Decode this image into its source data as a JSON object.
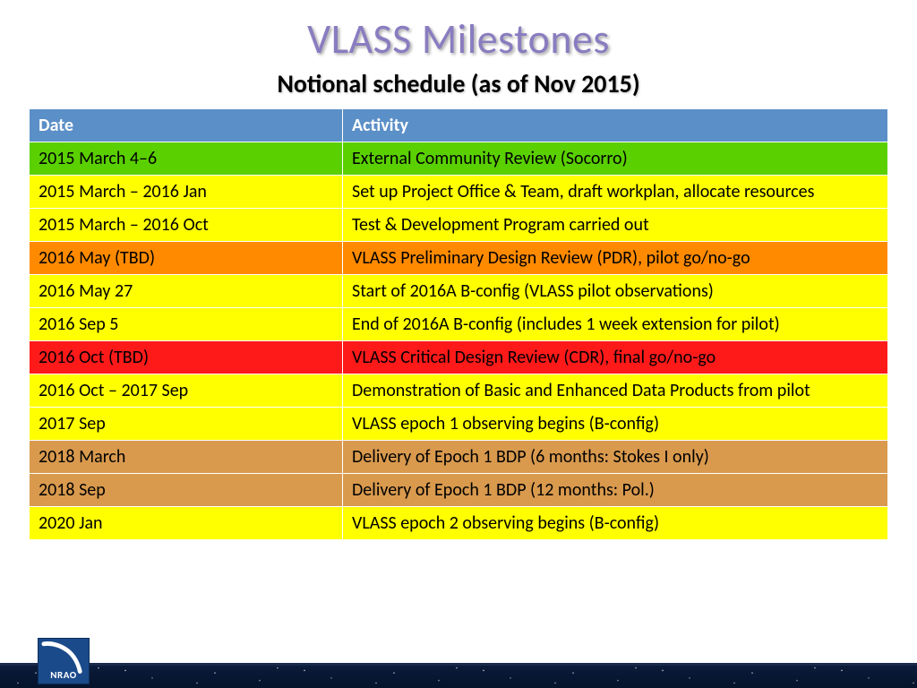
{
  "title": "VLASS Milestones",
  "subtitle": "Notional schedule (as of Nov 2015)",
  "colors": {
    "title": "#8a7cc0",
    "header_bg": "#5b8fc7",
    "green": "#5ad000",
    "yellow": "#ffff00",
    "orange": "#ff8a00",
    "red": "#ff1a1a",
    "tan": "#d99a4e",
    "footer": "#0b1b3a",
    "logo_bg": "#1a4a8a"
  },
  "table": {
    "headers": {
      "date": "Date",
      "activity": "Activity"
    },
    "rows": [
      {
        "date": "2015 March 4–6",
        "activity": "External Community Review (Socorro)",
        "bg": "#5ad000"
      },
      {
        "date": "2015 March – 2016 Jan",
        "activity": "Set up Project Office & Team, draft workplan, allocate resources",
        "bg": "#ffff00"
      },
      {
        "date": "2015 March – 2016 Oct",
        "activity": "Test & Development Program carried out",
        "bg": "#ffff00"
      },
      {
        "date": "2016 May (TBD)",
        "activity": "VLASS Preliminary Design Review (PDR), pilot go/no-go",
        "bg": "#ff8a00"
      },
      {
        "date": "2016 May 27",
        "activity": "Start of 2016A B-config (VLASS pilot observations)",
        "bg": "#ffff00"
      },
      {
        "date": "2016 Sep 5",
        "activity": "End of 2016A B-config (includes 1 week extension for pilot)",
        "bg": "#ffff00"
      },
      {
        "date": "2016 Oct (TBD)",
        "activity": "VLASS Critical Design Review (CDR), final go/no-go",
        "bg": "#ff1a1a"
      },
      {
        "date": "2016 Oct – 2017 Sep",
        "activity": "Demonstration of Basic and Enhanced Data Products from pilot",
        "bg": "#ffff00"
      },
      {
        "date": "2017 Sep",
        "activity": "VLASS epoch 1 observing begins (B-config)",
        "bg": "#ffff00"
      },
      {
        "date": "2018 March",
        "activity": "Delivery of Epoch 1 BDP (6 months: Stokes I only)",
        "bg": "#d99a4e"
      },
      {
        "date": "2018 Sep",
        "activity": "Delivery of Epoch 1 BDP (12 months: Pol.)",
        "bg": "#d99a4e"
      },
      {
        "date": "2020 Jan",
        "activity": "VLASS epoch 2 observing begins (B-config)",
        "bg": "#ffff00"
      }
    ]
  },
  "logo_text": "NRAO"
}
